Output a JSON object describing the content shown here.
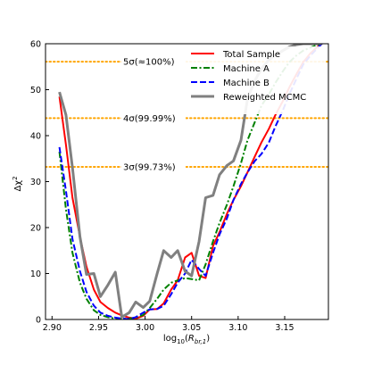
{
  "chart_data": {
    "type": "line",
    "title": "",
    "xlabel": "log$_{10}$($R_{br,1}$)",
    "xlabel_parts": [
      "log",
      "10",
      "(",
      "R",
      "br,1",
      ")"
    ],
    "ylabel": "Δχ²",
    "ylabel_parts": [
      "Δχ",
      "2"
    ],
    "xlim": [
      2.893,
      3.197
    ],
    "ylim": [
      0,
      60
    ],
    "xticks": [
      2.9,
      2.95,
      3.0,
      3.05,
      3.1,
      3.15
    ],
    "xtick_labels": [
      "2.90",
      "2.95",
      "3.00",
      "3.05",
      "3.10",
      "3.15"
    ],
    "yticks": [
      0,
      10,
      20,
      30,
      40,
      50,
      60
    ],
    "ytick_labels": [
      "0",
      "10",
      "20",
      "30",
      "40",
      "50",
      "60"
    ],
    "grid": false,
    "legend_position": "top-right",
    "reference_lines": [
      {
        "y": 56.1,
        "label": "5σ(≈100%)",
        "color": "#FFA500"
      },
      {
        "y": 43.8,
        "label": "4σ(99.99%)",
        "color": "#FFA500"
      },
      {
        "y": 33.2,
        "label": "3σ(99.73%)",
        "color": "#FFA500"
      }
    ],
    "series": [
      {
        "name": "Total Sample",
        "color": "#ff0000",
        "dash": "solid",
        "x": [
          2.908,
          2.915,
          2.922,
          2.93,
          2.937,
          2.945,
          2.952,
          2.96,
          2.968,
          2.975,
          2.983,
          2.99,
          2.998,
          3.005,
          3.013,
          3.02,
          3.028,
          3.035,
          3.043,
          3.05,
          3.058,
          3.065,
          3.073,
          3.08,
          3.088,
          3.095,
          3.103,
          3.11,
          3.118,
          3.125,
          3.133,
          3.14,
          3.148,
          3.155,
          3.163,
          3.17,
          3.178,
          3.185,
          3.19
        ],
        "y": [
          48.5,
          38.0,
          26.5,
          18.0,
          11.5,
          6.5,
          3.8,
          2.5,
          1.5,
          0.9,
          0.4,
          0.2,
          0.8,
          2.2,
          2.3,
          3.5,
          6.5,
          8.5,
          13.5,
          14.5,
          9.5,
          9.0,
          16.0,
          19.0,
          23.0,
          26.0,
          29.0,
          32.0,
          35.5,
          38.5,
          41.5,
          44.5,
          47.5,
          50.5,
          53.5,
          56.0,
          58.0,
          59.3,
          60.0
        ]
      },
      {
        "name": "Machine A",
        "color": "#008000",
        "dash": "dashdot",
        "x": [
          2.908,
          2.915,
          2.922,
          2.93,
          2.937,
          2.945,
          2.952,
          2.96,
          2.968,
          2.975,
          2.983,
          2.99,
          2.998,
          3.005,
          3.013,
          3.02,
          3.028,
          3.035,
          3.043,
          3.05,
          3.058,
          3.065,
          3.073,
          3.08,
          3.088,
          3.095,
          3.103,
          3.11,
          3.118,
          3.125,
          3.133,
          3.14,
          3.148,
          3.155,
          3.163,
          3.17,
          3.178,
          3.185,
          3.19
        ],
        "y": [
          36.5,
          24.0,
          14.5,
          8.0,
          4.5,
          2.0,
          1.0,
          0.5,
          0.2,
          0.1,
          0.2,
          0.4,
          1.0,
          2.5,
          4.5,
          6.5,
          8.0,
          8.5,
          9.0,
          8.8,
          8.5,
          12.0,
          17.0,
          21.0,
          25.0,
          29.0,
          34.0,
          39.0,
          43.0,
          46.5,
          49.0,
          51.5,
          54.0,
          56.0,
          57.5,
          58.5,
          59.2,
          59.7,
          60.0
        ]
      },
      {
        "name": "Machine B",
        "color": "#0000ff",
        "dash": "dashed",
        "x": [
          2.908,
          2.915,
          2.922,
          2.93,
          2.937,
          2.945,
          2.952,
          2.96,
          2.968,
          2.975,
          2.983,
          2.99,
          2.998,
          3.005,
          3.013,
          3.02,
          3.028,
          3.035,
          3.043,
          3.05,
          3.058,
          3.065,
          3.073,
          3.08,
          3.088,
          3.095,
          3.103,
          3.11,
          3.118,
          3.125,
          3.133,
          3.14,
          3.148,
          3.155,
          3.163,
          3.17,
          3.178,
          3.185,
          3.19
        ],
        "y": [
          37.5,
          28.0,
          17.5,
          10.5,
          6.0,
          3.0,
          1.5,
          0.8,
          0.4,
          0.2,
          0.1,
          0.5,
          1.5,
          2.2,
          2.3,
          3.0,
          5.5,
          8.0,
          10.0,
          13.0,
          11.0,
          9.5,
          14.5,
          18.5,
          22.0,
          26.0,
          29.5,
          32.0,
          34.5,
          36.0,
          38.5,
          42.0,
          45.5,
          49.0,
          52.5,
          55.5,
          57.5,
          59.0,
          60.0
        ]
      },
      {
        "name": "Reweighted MCMC",
        "color": "#808080",
        "dash": "solid",
        "x": [
          2.908,
          2.915,
          2.922,
          2.93,
          2.937,
          2.945,
          2.952,
          2.96,
          2.968,
          2.975,
          2.983,
          2.99,
          2.998,
          3.005,
          3.013,
          3.02,
          3.028,
          3.035,
          3.043,
          3.05,
          3.058,
          3.065,
          3.073,
          3.08,
          3.088,
          3.095,
          3.103,
          3.11,
          3.118,
          3.125,
          3.133,
          3.14,
          3.148,
          3.155,
          3.163,
          3.17,
          3.178,
          3.185,
          3.19
        ],
        "y": [
          49.5,
          44.5,
          33.0,
          18.0,
          9.8,
          10.0,
          5.0,
          7.5,
          10.3,
          0.5,
          1.5,
          3.8,
          2.6,
          4.0,
          10.0,
          15.0,
          13.5,
          15.0,
          10.5,
          9.5,
          17.0,
          26.5,
          27.0,
          31.5,
          33.5,
          34.5,
          39.0,
          48.0,
          52.0,
          54.5,
          56.5,
          57.5,
          58.5,
          59.3,
          59.8,
          60.0,
          60.0,
          60.0,
          60.0
        ]
      }
    ]
  }
}
